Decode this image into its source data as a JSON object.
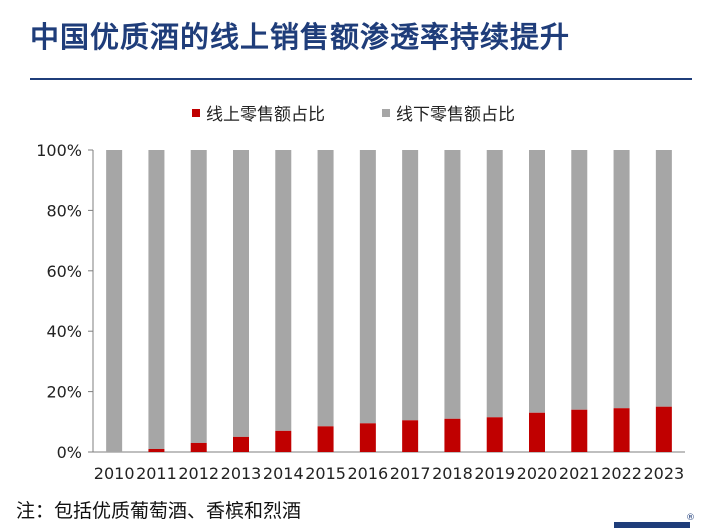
{
  "title": "中国优质酒的线上销售额渗透率持续提升",
  "note": "注：包括优质葡萄酒、香槟和烈酒",
  "colors": {
    "title": "#1f3d7a",
    "online": "#c00000",
    "offline": "#a6a6a6"
  },
  "chart_data": {
    "type": "bar",
    "stacked": true,
    "categories": [
      "2010",
      "2011",
      "2012",
      "2013",
      "2014",
      "2015",
      "2016",
      "2017",
      "2018",
      "2019",
      "2020",
      "2021",
      "2022",
      "2023"
    ],
    "series": [
      {
        "name": "线上零售额占比",
        "color": "#c00000",
        "values": [
          0,
          1,
          3,
          5,
          7,
          8.5,
          9.5,
          10.5,
          11,
          11.5,
          13,
          14,
          14.5,
          15
        ]
      },
      {
        "name": "线下零售额占比",
        "color": "#a6a6a6",
        "values": [
          100,
          99,
          97,
          95,
          93,
          91.5,
          90.5,
          89.5,
          89,
          88.5,
          87,
          86,
          85.5,
          85
        ]
      }
    ],
    "yticks": [
      "0%",
      "20%",
      "40%",
      "60%",
      "80%",
      "100%"
    ],
    "ylim": [
      0,
      100
    ],
    "legend_position": "top-center",
    "grid": false
  }
}
